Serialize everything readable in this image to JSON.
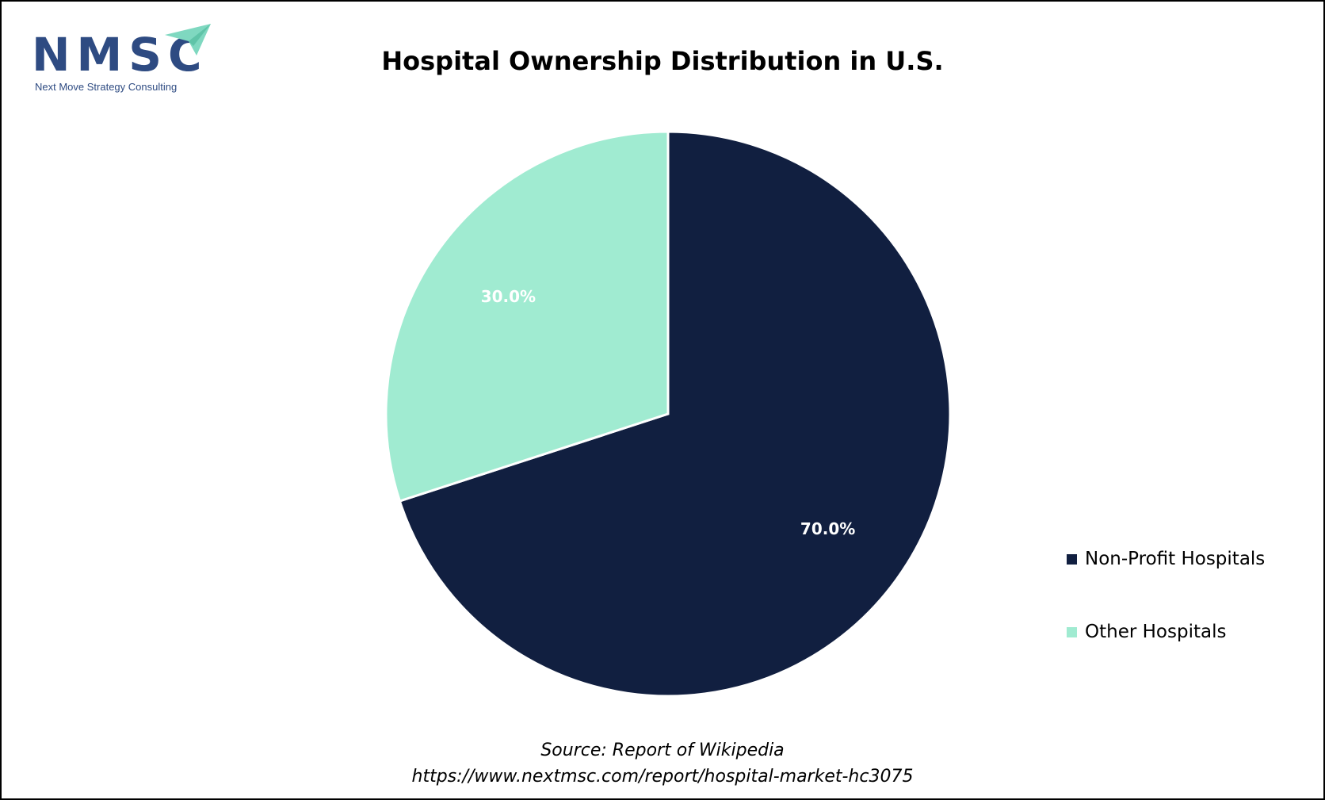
{
  "logo": {
    "wordmark": "NMSC",
    "tagline": "Next Move Strategy Consulting",
    "colors": {
      "text": "#2e4b82",
      "arrow": "#7fd8c0"
    }
  },
  "chart_data": {
    "type": "pie",
    "title": "Hospital Ownership Distribution in U.S.",
    "categories": [
      "Non-Profit Hospitals",
      "Other Hospitals"
    ],
    "values": [
      70.0,
      30.0
    ],
    "data_labels": [
      "70.0%",
      "30.0%"
    ],
    "colors": [
      "#111f40",
      "#a0ebd1"
    ],
    "legend_position": "right",
    "start_angle_deg": 0,
    "direction": "clockwise"
  },
  "source": {
    "line1": "Source: Report of Wikipedia",
    "line2": "https://www.nextmsc.com/report/hospital-market-hc3075"
  }
}
